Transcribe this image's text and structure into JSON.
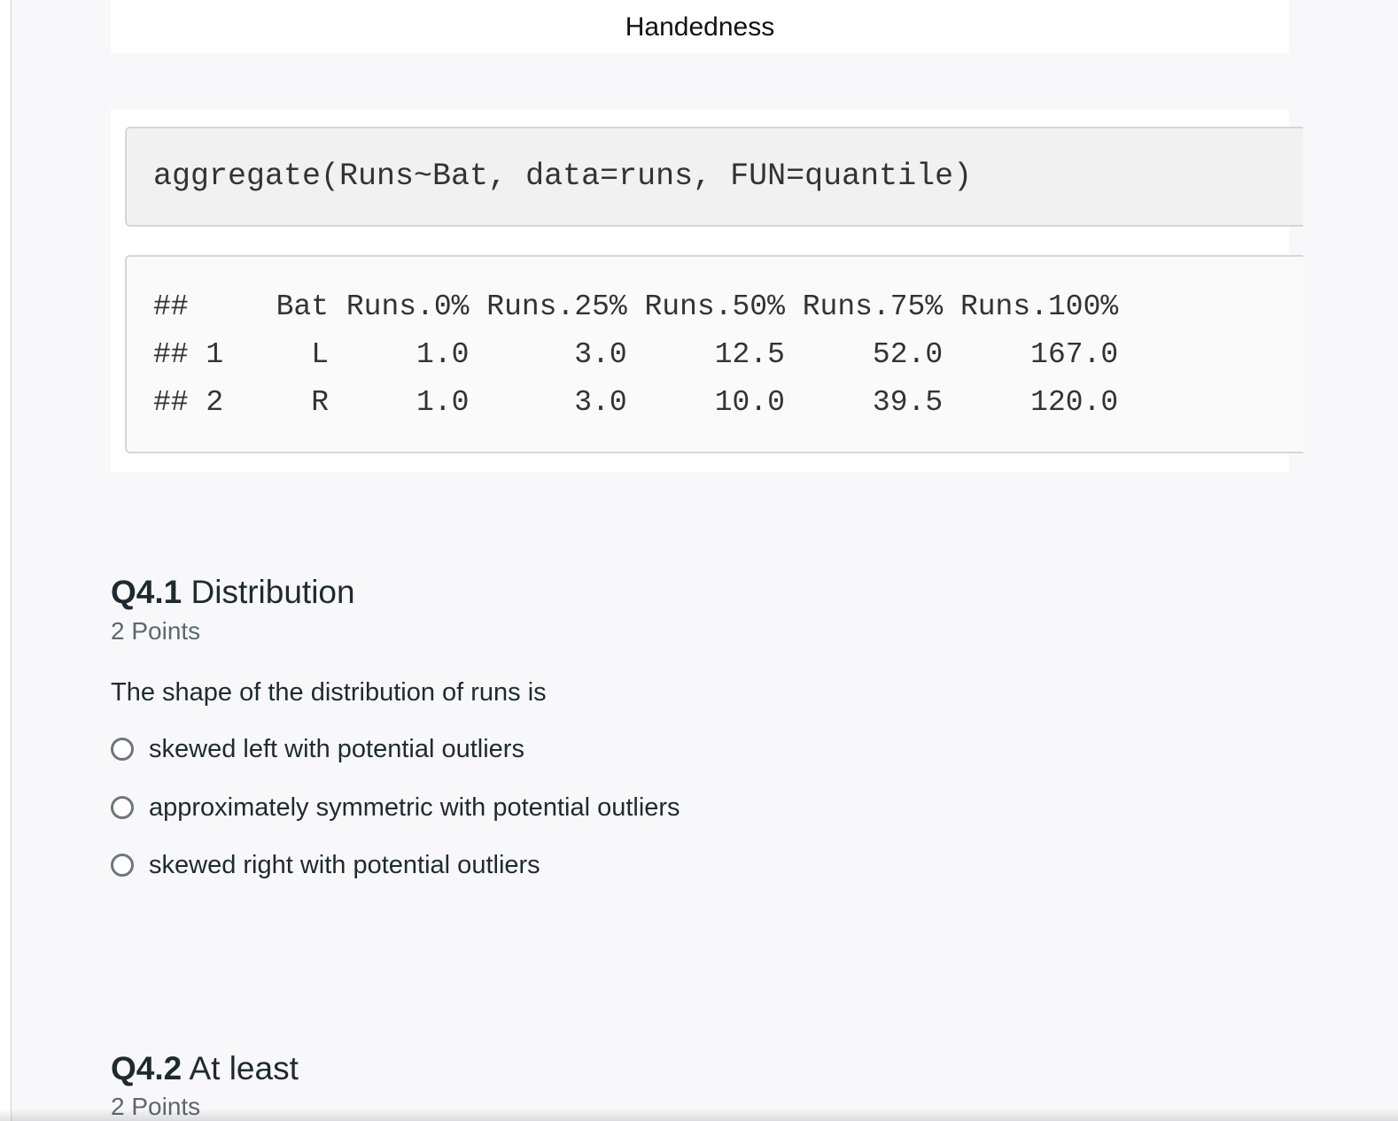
{
  "figure": {
    "x_axis_label": "Handedness"
  },
  "code_block": {
    "input": "aggregate(Runs~Bat, data=runs, FUN=quantile)",
    "output_lines": [
      "##     Bat Runs.0% Runs.25% Runs.50% Runs.75% Runs.100%",
      "## 1     L     1.0      3.0     12.5     52.0     167.0",
      "## 2     R     1.0      3.0     10.0     39.5     120.0"
    ]
  },
  "questions": [
    {
      "number": "Q4.1",
      "title": "Distribution",
      "points": "2 Points",
      "prompt": "The shape of the distribution of runs is",
      "options": [
        "skewed left with potential outliers",
        "approximately symmetric with potential outliers",
        "skewed right with potential outliers"
      ]
    },
    {
      "number": "Q4.2",
      "title": "At least",
      "points": "2 Points"
    }
  ]
}
